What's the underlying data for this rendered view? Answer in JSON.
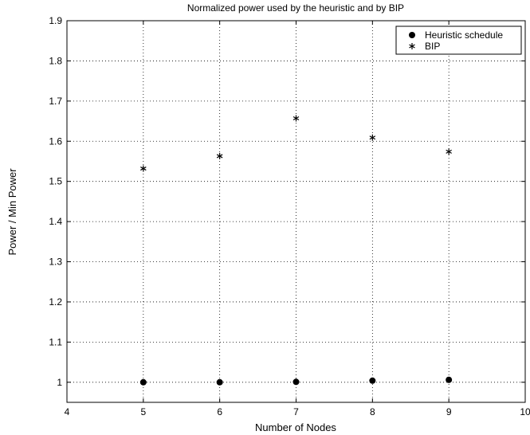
{
  "chart_data": {
    "type": "scatter",
    "title": "Normalized power used by the heuristic and by BIP",
    "xlabel": "Number of Nodes",
    "ylabel": "Power / Min Power",
    "xlim": [
      4,
      10
    ],
    "ylim": [
      0.95,
      1.9
    ],
    "xticks": [
      4,
      5,
      6,
      7,
      8,
      9,
      10
    ],
    "yticks": [
      1,
      1.1,
      1.2,
      1.3,
      1.4,
      1.5,
      1.6,
      1.7,
      1.8,
      1.9
    ],
    "xtick_labels": [
      "4",
      "5",
      "6",
      "7",
      "8",
      "9",
      "10"
    ],
    "ytick_labels": [
      "1",
      "1.1",
      "1.2",
      "1.3",
      "1.4",
      "1.5",
      "1.6",
      "1.7",
      "1.8",
      "1.9"
    ],
    "grid": true,
    "legend_position": "top-right",
    "series": [
      {
        "name": "Heuristic schedule",
        "marker": "dot",
        "x": [
          5,
          6,
          7,
          8,
          9
        ],
        "y": [
          1.0,
          1.0,
          1.001,
          1.004,
          1.006
        ]
      },
      {
        "name": "BIP",
        "marker": "star",
        "x": [
          5,
          6,
          7,
          8,
          9
        ],
        "y": [
          1.532,
          1.563,
          1.657,
          1.609,
          1.574
        ]
      }
    ],
    "colors": {
      "marker": "#000000",
      "grid": "#000000",
      "axes": "#000000",
      "background": "#ffffff"
    }
  }
}
